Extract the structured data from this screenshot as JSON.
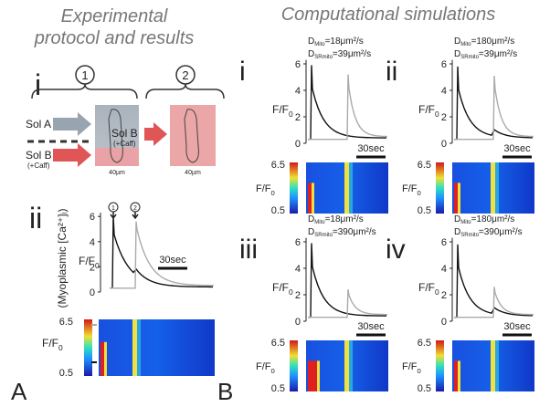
{
  "left": {
    "title_lines": [
      "Experimental",
      "protocol and results"
    ],
    "panel_i": {
      "label": "i",
      "steps": [
        "1",
        "2"
      ],
      "sol_a": "Sol A",
      "sol_b": "Sol B",
      "caff": "(+Caff)",
      "scales": [
        "40µm",
        "40µm"
      ]
    },
    "panel_ii": {
      "label": "ii",
      "y_label": "(Myoplasmic [Ca²⁺]ᵢ)",
      "f_label": "F/F",
      "f_sub": "0",
      "yticks": [
        0,
        2,
        4,
        6
      ],
      "time_scale": "30sec",
      "markers": [
        "1",
        "2"
      ],
      "colorbar": [
        6.5,
        0.5
      ]
    }
  },
  "right": {
    "title": "Computational simulations",
    "f_label": "F/F",
    "f_sub": "0",
    "yticks": [
      0,
      2,
      4,
      6
    ],
    "time_scale": "30sec",
    "colorbar": [
      6.5,
      0.5
    ],
    "panels": [
      {
        "label": "i",
        "d1": [
          "D",
          "Mito",
          "=18μm²/s"
        ],
        "d2": [
          "D",
          "SRmito",
          "=39μm²/s"
        ]
      },
      {
        "label": "ii",
        "d1": [
          "D",
          "Mito",
          "=180μm²/s"
        ],
        "d2": [
          "D",
          "SRmito",
          "=39μm²/s"
        ]
      },
      {
        "label": "iii",
        "d1": [
          "D",
          "Mito",
          "=18μm²/s"
        ],
        "d2": [
          "D",
          "SRmito",
          "=390μm²/s"
        ]
      },
      {
        "label": "iv",
        "d1": [
          "D",
          "Mito",
          "=180μm²/s"
        ],
        "d2": [
          "D",
          "SRmito",
          "=390μm²/s"
        ]
      }
    ]
  },
  "figure_labels": [
    "A",
    "B"
  ]
}
